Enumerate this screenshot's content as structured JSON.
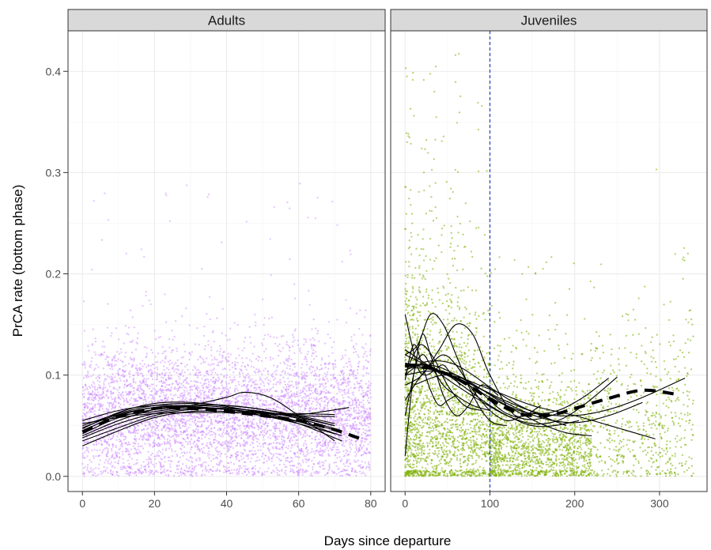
{
  "chart_data": {
    "type": "scatter",
    "xlabel": "Days since departure",
    "ylabel": "PrCA rate (bottom phase)",
    "y_range": [
      -0.015,
      0.44
    ],
    "y_ticks": [
      0.0,
      0.1,
      0.2,
      0.3,
      0.4
    ],
    "y_tick_labels": [
      "0.0",
      "0.1",
      "0.2",
      "0.3",
      "0.4"
    ],
    "grid": true,
    "legend": "none",
    "panels": [
      {
        "strip": "Adults",
        "point_color": "#c77cff",
        "x_range": [
          -4,
          84
        ],
        "x_ticks": [
          0,
          20,
          40,
          60,
          80
        ],
        "x_tick_labels": [
          "0",
          "20",
          "40",
          "60",
          "80"
        ],
        "point_count": 5200,
        "point_x_max": 80,
        "point_y_center": 0.06,
        "point_y_spread": 0.035,
        "point_y_max": 0.29,
        "mean_curve": {
          "x": [
            0,
            10,
            20,
            30,
            40,
            50,
            60,
            70,
            78
          ],
          "y": [
            0.044,
            0.059,
            0.067,
            0.067,
            0.064,
            0.06,
            0.055,
            0.046,
            0.036
          ]
        },
        "individual_curves": [
          {
            "x": [
              0,
              10,
              20,
              30,
              40,
              50,
              60,
              70
            ],
            "y": [
              0.05,
              0.062,
              0.07,
              0.072,
              0.07,
              0.066,
              0.06,
              0.052
            ]
          },
          {
            "x": [
              0,
              10,
              20,
              30,
              40,
              50,
              60,
              72
            ],
            "y": [
              0.038,
              0.052,
              0.062,
              0.067,
              0.067,
              0.064,
              0.057,
              0.045
            ]
          },
          {
            "x": [
              0,
              10,
              20,
              30,
              40,
              50,
              60,
              70
            ],
            "y": [
              0.055,
              0.065,
              0.07,
              0.069,
              0.066,
              0.062,
              0.06,
              0.059
            ]
          },
          {
            "x": [
              0,
              10,
              20,
              30,
              40,
              50,
              60,
              74
            ],
            "y": [
              0.042,
              0.058,
              0.066,
              0.068,
              0.066,
              0.063,
              0.061,
              0.068
            ]
          },
          {
            "x": [
              0,
              10,
              20,
              30,
              40,
              50,
              60,
              70
            ],
            "y": [
              0.035,
              0.048,
              0.06,
              0.066,
              0.067,
              0.064,
              0.058,
              0.05
            ]
          },
          {
            "x": [
              0,
              10,
              20,
              30,
              40,
              50,
              60,
              72
            ],
            "y": [
              0.047,
              0.063,
              0.072,
              0.073,
              0.069,
              0.062,
              0.052,
              0.035
            ]
          },
          {
            "x": [
              0,
              10,
              20,
              30,
              40,
              50,
              60,
              70
            ],
            "y": [
              0.052,
              0.058,
              0.062,
              0.063,
              0.063,
              0.062,
              0.062,
              0.061
            ]
          },
          {
            "x": [
              0,
              10,
              20,
              30,
              40,
              50,
              60,
              70
            ],
            "y": [
              0.03,
              0.045,
              0.058,
              0.064,
              0.064,
              0.06,
              0.054,
              0.046
            ]
          },
          {
            "x": [
              0,
              10,
              20,
              30,
              40,
              50,
              60,
              72
            ],
            "y": [
              0.045,
              0.06,
              0.068,
              0.07,
              0.068,
              0.063,
              0.054,
              0.04
            ]
          },
          {
            "x": [
              0,
              10,
              20,
              30,
              40,
              50,
              60,
              70
            ],
            "y": [
              0.04,
              0.055,
              0.066,
              0.07,
              0.07,
              0.066,
              0.059,
              0.05
            ]
          },
          {
            "x": [
              8,
              20,
              30,
              40,
              45,
              52,
              60,
              70
            ],
            "y": [
              0.06,
              0.064,
              0.07,
              0.078,
              0.083,
              0.078,
              0.06,
              0.035
            ]
          },
          {
            "x": [
              0,
              10,
              20,
              30,
              40,
              50,
              60,
              70
            ],
            "y": [
              0.048,
              0.061,
              0.068,
              0.069,
              0.066,
              0.06,
              0.052,
              0.042
            ]
          }
        ]
      },
      {
        "strip": "Juveniles",
        "point_color": "#7cae00",
        "x_range": [
          -17,
          356
        ],
        "x_ticks": [
          0,
          100,
          200,
          300
        ],
        "x_tick_labels": [
          "0",
          "100",
          "200",
          "300"
        ],
        "vline_x": 100,
        "vline_color": "#1f3fbf",
        "point_count": 4300,
        "point_x_max": 340,
        "point_y_max": 0.42,
        "mean_curve": {
          "x": [
            0,
            20,
            40,
            60,
            80,
            100,
            120,
            140,
            160,
            180,
            200,
            240,
            280,
            320
          ],
          "y": [
            0.11,
            0.109,
            0.104,
            0.097,
            0.087,
            0.076,
            0.067,
            0.061,
            0.06,
            0.062,
            0.067,
            0.077,
            0.085,
            0.081
          ]
        },
        "individual_curves": [
          {
            "x": [
              0,
              10,
              20,
              30,
              40,
              50,
              60
            ],
            "y": [
              0.095,
              0.13,
              0.11,
              0.085,
              0.07,
              0.075,
              0.08
            ]
          },
          {
            "x": [
              0,
              8,
              16,
              25,
              35,
              45,
              55,
              65
            ],
            "y": [
              0.16,
              0.13,
              0.105,
              0.1,
              0.105,
              0.11,
              0.1,
              0.09
            ]
          },
          {
            "x": [
              0,
              10,
              20,
              30,
              45,
              60,
              80,
              100
            ],
            "y": [
              0.02,
              0.1,
              0.12,
              0.11,
              0.09,
              0.08,
              0.07,
              0.065
            ]
          },
          {
            "x": [
              0,
              15,
              30,
              45,
              60,
              80,
              100,
              120
            ],
            "y": [
              0.12,
              0.13,
              0.16,
              0.15,
              0.12,
              0.08,
              0.055,
              0.05
            ]
          },
          {
            "x": [
              0,
              20,
              40,
              60,
              80,
              100,
              130,
              160
            ],
            "y": [
              0.09,
              0.1,
              0.125,
              0.15,
              0.14,
              0.1,
              0.06,
              0.07
            ]
          },
          {
            "x": [
              0,
              20,
              40,
              60,
              80,
              100,
              130,
              160,
              190
            ],
            "y": [
              0.1,
              0.112,
              0.114,
              0.11,
              0.1,
              0.088,
              0.072,
              0.06,
              0.05
            ]
          },
          {
            "x": [
              0,
              25,
              50,
              75,
              100,
              130,
              160,
              190,
              220
            ],
            "y": [
              0.11,
              0.11,
              0.1,
              0.09,
              0.078,
              0.065,
              0.052,
              0.043,
              0.04
            ]
          },
          {
            "x": [
              0,
              25,
              50,
              75,
              100,
              125,
              150,
              175,
              205
            ],
            "y": [
              0.12,
              0.11,
              0.1,
              0.085,
              0.07,
              0.058,
              0.05,
              0.05,
              0.055
            ]
          },
          {
            "x": [
              0,
              20,
              40,
              60,
              80,
              100,
              120,
              150,
              180
            ],
            "y": [
              0.105,
              0.11,
              0.108,
              0.1,
              0.09,
              0.075,
              0.062,
              0.056,
              0.062
            ]
          },
          {
            "x": [
              0,
              30,
              60,
              90,
              120,
              150,
              180,
              210,
              240
            ],
            "y": [
              0.1,
              0.104,
              0.1,
              0.086,
              0.07,
              0.062,
              0.065,
              0.078,
              0.097
            ]
          },
          {
            "x": [
              0,
              30,
              60,
              90,
              120,
              150,
              180,
              210,
              250
            ],
            "y": [
              0.125,
              0.108,
              0.09,
              0.074,
              0.06,
              0.052,
              0.055,
              0.07,
              0.098
            ]
          },
          {
            "x": [
              0,
              40,
              80,
              120,
              160,
              200,
              240,
              280
            ],
            "y": [
              0.112,
              0.103,
              0.09,
              0.072,
              0.058,
              0.053,
              0.06,
              0.073
            ]
          },
          {
            "x": [
              0,
              40,
              80,
              120,
              160,
              200,
              240,
              280,
              330
            ],
            "y": [
              0.108,
              0.104,
              0.09,
              0.074,
              0.062,
              0.06,
              0.066,
              0.078,
              0.097
            ]
          },
          {
            "x": [
              10,
              50,
              100,
              150,
              200,
              250,
              295
            ],
            "y": [
              0.09,
              0.1,
              0.086,
              0.07,
              0.06,
              0.048,
              0.037
            ]
          },
          {
            "x": [
              0,
              10,
              20,
              30,
              45,
              60,
              75,
              90,
              110
            ],
            "y": [
              0.06,
              0.1,
              0.14,
              0.12,
              0.08,
              0.06,
              0.07,
              0.09,
              0.08
            ]
          },
          {
            "x": [
              0,
              15,
              30,
              45,
              60,
              80,
              100,
              120,
              140
            ],
            "y": [
              0.075,
              0.095,
              0.11,
              0.12,
              0.11,
              0.085,
              0.065,
              0.055,
              0.06
            ]
          },
          {
            "x": [
              0,
              10,
              20,
              35,
              50,
              70,
              90
            ],
            "y": [
              0.1,
              0.12,
              0.13,
              0.115,
              0.09,
              0.07,
              0.065
            ]
          }
        ]
      }
    ]
  }
}
